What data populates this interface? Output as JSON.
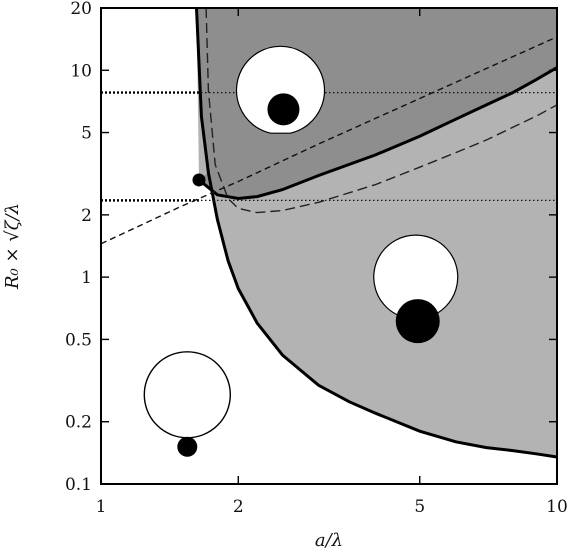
{
  "chart_data": {
    "type": "line",
    "xlabel": "a/λ",
    "ylabel": "R₀ × √ζ/λ",
    "xscale": "log",
    "yscale": "log",
    "xlim": [
      1,
      10
    ],
    "ylim": [
      0.1,
      20
    ],
    "x_ticks": [
      {
        "value": 1,
        "label": "1"
      },
      {
        "value": 2,
        "label": "2"
      },
      {
        "value": 5,
        "label": "5"
      },
      {
        "value": 10,
        "label": "10"
      }
    ],
    "y_ticks": [
      {
        "value": 0.1,
        "label": "0.1"
      },
      {
        "value": 0.2,
        "label": "0.2"
      },
      {
        "value": 0.5,
        "label": "0.5"
      },
      {
        "value": 1,
        "label": "1"
      },
      {
        "value": 2,
        "label": "2"
      },
      {
        "value": 5,
        "label": "5"
      },
      {
        "value": 10,
        "label": "10"
      },
      {
        "value": 20,
        "label": "20"
      }
    ],
    "grid": false,
    "series": [
      {
        "style": "solid-thick",
        "x": [
          1.62,
          1.66,
          1.72,
          1.8,
          1.9,
          2.0,
          2.2,
          2.5,
          3.0,
          3.5,
          4.0,
          5.0,
          6.0,
          7.0,
          8.0,
          9.0,
          10.0
        ],
        "y": [
          20,
          6.0,
          3.2,
          1.9,
          1.2,
          0.88,
          0.6,
          0.42,
          0.3,
          0.25,
          0.22,
          0.18,
          0.16,
          0.15,
          0.145,
          0.14,
          0.135
        ]
      },
      {
        "style": "solid-thick",
        "x": [
          1.64,
          1.8,
          2.0,
          2.2,
          2.5,
          3.0,
          4.0,
          5.0,
          6.0,
          7.0,
          8.0,
          9.0,
          10.0
        ],
        "y": [
          2.95,
          2.5,
          2.4,
          2.45,
          2.65,
          3.1,
          3.9,
          4.8,
          5.8,
          6.8,
          7.8,
          9.0,
          10.3
        ]
      },
      {
        "style": "dashed-long",
        "x": [
          1.7,
          1.72,
          1.78,
          1.9,
          2.0,
          2.2,
          2.5,
          3.0,
          4.0,
          5.0,
          6.0,
          7.0,
          8.0,
          9.0,
          10.0
        ],
        "y": [
          20,
          8.0,
          3.5,
          2.4,
          2.15,
          2.05,
          2.1,
          2.3,
          2.8,
          3.4,
          4.0,
          4.6,
          5.3,
          6.0,
          6.8
        ]
      },
      {
        "style": "dashed-short",
        "x": [
          1.0,
          1.5,
          2.0,
          3.0,
          5.0,
          7.0,
          10.0
        ],
        "y": [
          1.45,
          2.2,
          2.9,
          4.4,
          7.3,
          10.2,
          14.5
        ]
      },
      {
        "style": "dotted",
        "x": [
          1.0,
          10.0
        ],
        "y": [
          7.8,
          7.8
        ]
      },
      {
        "style": "dotted",
        "x": [
          1.0,
          10.0
        ],
        "y": [
          2.35,
          2.35
        ]
      }
    ],
    "marker": {
      "x": 1.64,
      "y": 2.95
    },
    "regions": [
      {
        "shade": "dark-gray",
        "bounded_by": "left steep curve and upper solid curve (above)"
      },
      {
        "shade": "light-gray",
        "bounded_by": "left steep curve, upper solid curve and lower boundary"
      }
    ],
    "insets": [
      {
        "region": "dark",
        "x": 2.5,
        "y": 8.0,
        "description": "ring with ball inside"
      },
      {
        "region": "light",
        "x": 4.9,
        "y": 0.8,
        "description": "ring with ball at opening"
      },
      {
        "region": "white",
        "x": 1.5,
        "y": 0.25,
        "description": "ring with ball outside"
      }
    ]
  }
}
